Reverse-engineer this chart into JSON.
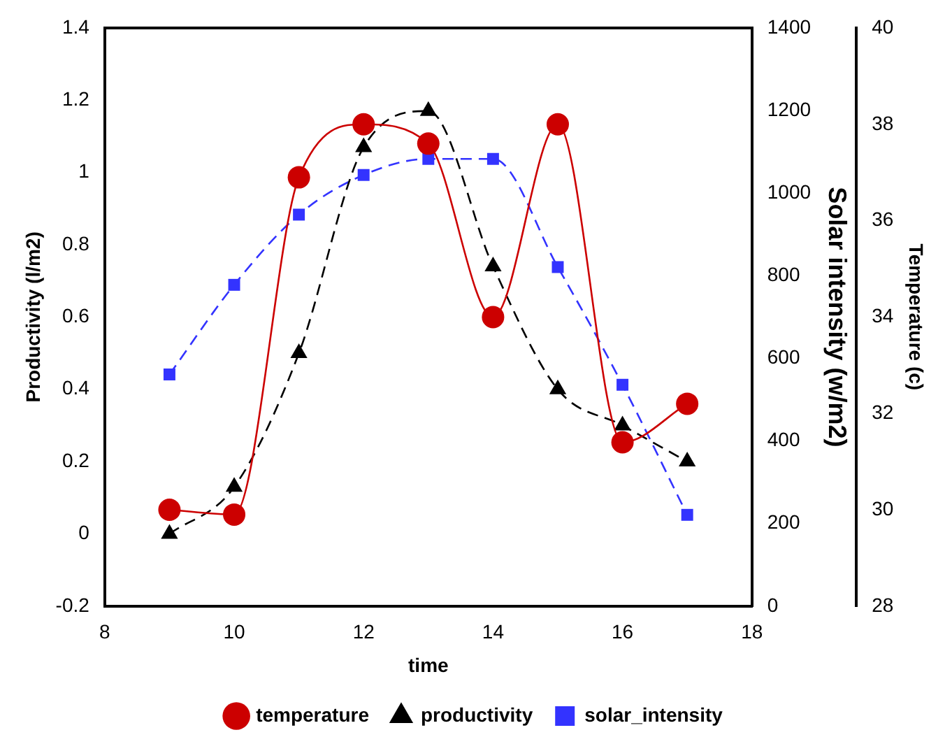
{
  "chart_data": {
    "type": "line",
    "xlabel": "time",
    "ylabel": "Productivity (l/m2)",
    "y2label": "Solar intensity (w/m2)",
    "y3label": "Temperature (c)",
    "legend": "bottom",
    "x": [
      9,
      10,
      11,
      12,
      13,
      14,
      15,
      16,
      17
    ],
    "xlim": [
      8,
      18
    ],
    "xticks": [
      8,
      10,
      12,
      14,
      16,
      18
    ],
    "ylim": [
      -0.2,
      1.4
    ],
    "yticks": [
      -0.2,
      0,
      0.2,
      0.4,
      0.6,
      0.8,
      1,
      1.2,
      1.4
    ],
    "y2lim": [
      0,
      1400
    ],
    "y2ticks": [
      0,
      200,
      400,
      600,
      800,
      1000,
      1200,
      1400
    ],
    "y3lim": [
      28,
      40
    ],
    "y3ticks": [
      28,
      30,
      32,
      34,
      36,
      38,
      40
    ],
    "series": [
      {
        "name": "temperature",
        "color": "#cc0000",
        "axis": "y3",
        "marker": "circle",
        "line_style": "solid",
        "values": [
          30.0,
          29.9,
          36.9,
          38.0,
          37.6,
          34.0,
          38.0,
          31.4,
          32.2
        ]
      },
      {
        "name": "productivity",
        "color": "#000000",
        "axis": "y",
        "marker": "triangle",
        "line_style": "dashed",
        "values": [
          0.0,
          0.13,
          0.5,
          1.07,
          1.17,
          0.74,
          0.4,
          0.3,
          0.2
        ]
      },
      {
        "name": "solar_intensity",
        "color": "#3333ff",
        "axis": "y2",
        "marker": "square",
        "line_style": "dashed",
        "values": [
          561,
          778,
          948,
          1044,
          1083,
          1083,
          821,
          536,
          221
        ]
      }
    ]
  }
}
